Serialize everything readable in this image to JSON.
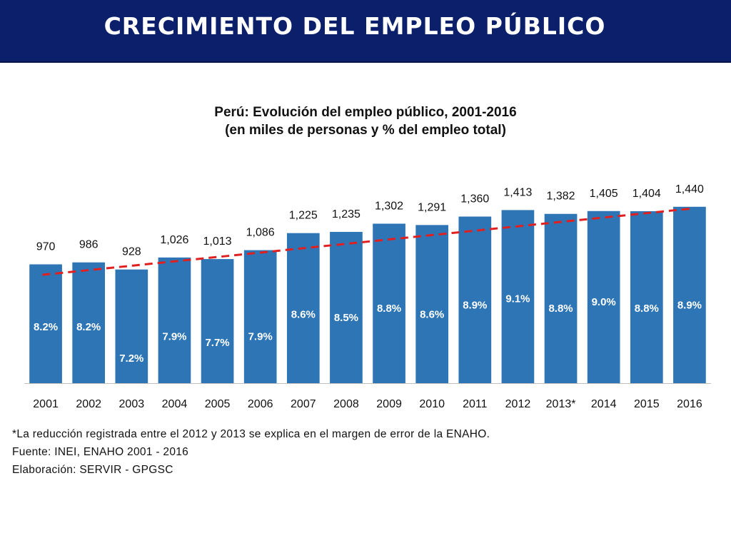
{
  "header": {
    "title": "CRECIMIENTO DEL EMPLEO PÚBLICO"
  },
  "colors": {
    "header_bg": "#0b1f6b",
    "bar": "#2e75b6",
    "trend": "#e02020"
  },
  "chart_data": {
    "type": "bar",
    "title": "Perú: Evolución del empleo público, 2001-2016",
    "subtitle": "(en miles de personas y % del empleo total)",
    "categories": [
      "2001",
      "2002",
      "2003",
      "2004",
      "2005",
      "2006",
      "2007",
      "2008",
      "2009",
      "2010",
      "2011",
      "2012",
      "2013*",
      "2014",
      "2015",
      "2016"
    ],
    "value_labels": [
      "970",
      "986",
      "928",
      "1,026",
      "1,013",
      "1,086",
      "1,225",
      "1,235",
      "1,302",
      "1,291",
      "1,360",
      "1,413",
      "1,382",
      "1,405",
      "1,404",
      "1,440"
    ],
    "share_labels": [
      "8.2%",
      "8.2%",
      "7.2%",
      "7.9%",
      "7.7%",
      "7.9%",
      "8.6%",
      "8.5%",
      "8.8%",
      "8.6%",
      "8.9%",
      "9.1%",
      "8.8%",
      "9.0%",
      "8.8%",
      "8.9%"
    ],
    "series": [
      {
        "values": [
          970,
          986,
          928,
          1026,
          1013,
          1086,
          1225,
          1235,
          1302,
          1291,
          1360,
          1413,
          1382,
          1405,
          1404,
          1440
        ]
      },
      {
        "values": [
          8.2,
          8.2,
          7.2,
          7.9,
          7.7,
          7.9,
          8.6,
          8.5,
          8.8,
          8.6,
          8.9,
          9.1,
          8.8,
          9.0,
          8.8,
          8.9
        ]
      }
    ],
    "trendline": {
      "type": "linear",
      "style": "dashed"
    },
    "xlabel": "",
    "ylabel": "",
    "ylim": [
      0,
      1730
    ],
    "grid": false,
    "legend": "none"
  },
  "notes": [
    "*La reducción registrada entre el 2012 y 2013 se explica en el margen de error de la ENAHO.",
    "Fuente: INEI, ENAHO 2001 - 2016",
    "Elaboración: SERVIR - GPGSC"
  ]
}
